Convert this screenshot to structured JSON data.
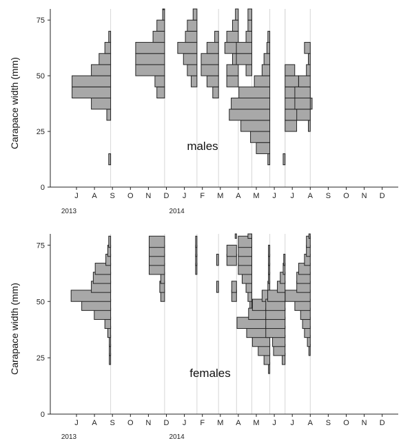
{
  "colors": {
    "bar_fill": "#a8a8a8",
    "bar_stroke": "#222222",
    "grid": "#d6d6d6"
  },
  "chart_data": [
    {
      "type": "bar",
      "orientation": "horizontal-histograms-per-month",
      "panel_label": "males",
      "ylabel": "Carapace width (mm)",
      "ylim": [
        0,
        80
      ],
      "yticks": [
        0,
        25,
        50,
        75
      ],
      "months": [
        "J",
        "A",
        "S",
        "O",
        "N",
        "D",
        "J",
        "F",
        "M",
        "A",
        "M",
        "J",
        "J",
        "A",
        "S",
        "O",
        "N",
        "D"
      ],
      "year_labels": [
        {
          "label": "2013",
          "month_index": 0
        },
        {
          "label": "2014",
          "month_index": 6
        }
      ],
      "bin_width_mm": 5,
      "samples": [
        {
          "date_index": 1.9,
          "bins": [
            [
              10,
              0.1
            ],
            [
              30,
              0.2
            ],
            [
              35,
              1.0
            ],
            [
              40,
              2.0
            ],
            [
              45,
              2.0
            ],
            [
              50,
              1.0
            ],
            [
              55,
              0.6
            ],
            [
              60,
              0.3
            ],
            [
              65,
              0.1
            ]
          ]
        },
        {
          "date_index": 4.9,
          "bins": [
            [
              40,
              0.4
            ],
            [
              45,
              0.5
            ],
            [
              50,
              1.5
            ],
            [
              55,
              1.5
            ],
            [
              60,
              1.5
            ],
            [
              65,
              0.6
            ],
            [
              70,
              0.4
            ],
            [
              75,
              0.1
            ],
            [
              80,
              0.1
            ]
          ]
        },
        {
          "date_index": 6.7,
          "bins": [
            [
              45,
              0.3
            ],
            [
              50,
              0.5
            ],
            [
              55,
              0.7
            ],
            [
              60,
              1.0
            ],
            [
              65,
              0.6
            ],
            [
              70,
              0.5
            ],
            [
              75,
              0.2
            ]
          ]
        },
        {
          "date_index": 7.9,
          "bins": [
            [
              40,
              0.3
            ],
            [
              45,
              0.6
            ],
            [
              50,
              0.9
            ],
            [
              55,
              0.9
            ],
            [
              60,
              0.6
            ],
            [
              65,
              0.2
            ]
          ]
        },
        {
          "date_index": 9.0,
          "bins": [
            [
              45,
              0.6
            ],
            [
              50,
              0.6
            ],
            [
              55,
              0.3
            ],
            [
              60,
              0.7
            ],
            [
              65,
              0.6
            ],
            [
              70,
              0.3
            ],
            [
              75,
              0.15
            ]
          ]
        },
        {
          "date_index": 9.75,
          "bins": [
            [
              35,
              0.1
            ],
            [
              50,
              0.3
            ],
            [
              55,
              0.8
            ],
            [
              60,
              0.8
            ],
            [
              65,
              0.3
            ],
            [
              70,
              0.2
            ],
            [
              75,
              0.2
            ]
          ]
        },
        {
          "date_index": 10.75,
          "bins": [
            [
              10,
              0.1
            ],
            [
              15,
              0.7
            ],
            [
              20,
              1.0
            ],
            [
              25,
              1.5
            ],
            [
              30,
              2.1
            ],
            [
              35,
              2.0
            ],
            [
              40,
              1.6
            ],
            [
              45,
              0.8
            ],
            [
              50,
              0.4
            ],
            [
              55,
              0.3
            ],
            [
              60,
              0.15
            ],
            [
              65,
              0.1
            ]
          ]
        },
        {
          "date_index": 11.6,
          "bins": [
            [
              10,
              0.1
            ]
          ]
        },
        {
          "date_index": 11.6,
          "side": "right",
          "bins": [
            [
              25,
              0.6
            ],
            [
              30,
              1.3
            ],
            [
              35,
              1.4
            ],
            [
              40,
              1.3
            ],
            [
              45,
              0.7
            ],
            [
              50,
              0.5
            ]
          ]
        },
        {
          "date_index": 13.0,
          "bins": [
            [
              25,
              0.1
            ],
            [
              30,
              0.7
            ],
            [
              35,
              0.8
            ],
            [
              40,
              0.8
            ],
            [
              45,
              0.6
            ],
            [
              50,
              0.2
            ],
            [
              55,
              0.1
            ],
            [
              60,
              0.3
            ]
          ]
        }
      ]
    },
    {
      "type": "bar",
      "orientation": "horizontal-histograms-per-month",
      "panel_label": "females",
      "ylabel": "Carapace width (mm)",
      "ylim": [
        0,
        80
      ],
      "yticks": [
        0,
        25,
        50,
        75
      ],
      "months": [
        "J",
        "A",
        "S",
        "O",
        "N",
        "D",
        "J",
        "F",
        "M",
        "A",
        "M",
        "J",
        "J",
        "A",
        "S",
        "O",
        "N",
        "D"
      ],
      "year_labels": [
        {
          "label": "2013",
          "month_index": 0
        },
        {
          "label": "2014",
          "month_index": 6
        }
      ],
      "bin_width_mm": 5,
      "samples": [
        {
          "date_index": 1.9,
          "bins": [
            [
              22,
              0.05
            ],
            [
              26,
              0.05
            ],
            [
              30,
              0.05
            ],
            [
              34,
              0.15
            ],
            [
              38,
              0.3
            ],
            [
              42,
              0.85
            ],
            [
              46,
              1.5
            ],
            [
              50,
              2.05
            ],
            [
              54,
              1.0
            ],
            [
              58,
              0.9
            ],
            [
              62,
              0.8
            ],
            [
              66,
              0.25
            ],
            [
              70,
              0.15
            ],
            [
              74,
              0.1
            ]
          ]
        },
        {
          "date_index": 4.9,
          "bins": [
            [
              50,
              0.2
            ],
            [
              54,
              0.25
            ],
            [
              58,
              0.2
            ],
            [
              62,
              0.8
            ],
            [
              66,
              0.8
            ],
            [
              70,
              0.8
            ],
            [
              74,
              0.8
            ]
          ]
        },
        {
          "date_index": 6.7,
          "bins": [
            [
              62,
              0.05
            ],
            [
              66,
              0.05
            ],
            [
              70,
              0.05
            ],
            [
              74,
              0.05
            ]
          ]
        },
        {
          "date_index": 7.9,
          "bins": [
            [
              54,
              0.1
            ],
            [
              66,
              0.1
            ]
          ]
        },
        {
          "date_index": 8.9,
          "bins": [
            [
              50,
              0.25
            ],
            [
              54,
              0.25
            ],
            [
              66,
              0.5
            ],
            [
              70,
              0.5
            ],
            [
              78,
              0.05
            ]
          ]
        },
        {
          "date_index": 9.75,
          "bins": [
            [
              46,
              0.1
            ],
            [
              50,
              0.2
            ],
            [
              54,
              0.3
            ],
            [
              58,
              0.5
            ],
            [
              62,
              0.7
            ],
            [
              66,
              0.7
            ],
            [
              70,
              0.7
            ],
            [
              74,
              0.7
            ],
            [
              78,
              0.2
            ]
          ]
        },
        {
          "date_index": 10.75,
          "bins": [
            [
              18,
              0.05
            ],
            [
              22,
              0.3
            ],
            [
              26,
              0.6
            ],
            [
              30,
              0.9
            ],
            [
              34,
              1.2
            ],
            [
              38,
              1.7
            ],
            [
              42,
              1.1
            ],
            [
              46,
              0.9
            ],
            [
              50,
              0.4
            ],
            [
              54,
              0.1
            ],
            [
              58,
              0.05
            ],
            [
              62,
              0.05
            ],
            [
              66,
              0.05
            ],
            [
              70,
              0.05
            ]
          ]
        },
        {
          "date_index": 11.6,
          "bins": [
            [
              22,
              0.15
            ],
            [
              26,
              0.6
            ],
            [
              30,
              0.65
            ],
            [
              34,
              1.0
            ],
            [
              38,
              1.0
            ],
            [
              42,
              1.0
            ],
            [
              46,
              1.0
            ],
            [
              50,
              0.9
            ],
            [
              54,
              0.4
            ],
            [
              58,
              0.25
            ],
            [
              62,
              0.1
            ],
            [
              66,
              0.05
            ]
          ]
        },
        {
          "date_index": 13.0,
          "bins": [
            [
              26,
              0.05
            ],
            [
              30,
              0.15
            ],
            [
              34,
              0.3
            ],
            [
              38,
              0.4
            ],
            [
              42,
              0.5
            ],
            [
              46,
              0.8
            ],
            [
              50,
              1.3
            ],
            [
              54,
              0.7
            ],
            [
              58,
              0.7
            ],
            [
              62,
              0.6
            ],
            [
              66,
              0.3
            ],
            [
              70,
              0.2
            ],
            [
              74,
              0.2
            ],
            [
              78,
              0.05
            ]
          ]
        }
      ]
    }
  ]
}
